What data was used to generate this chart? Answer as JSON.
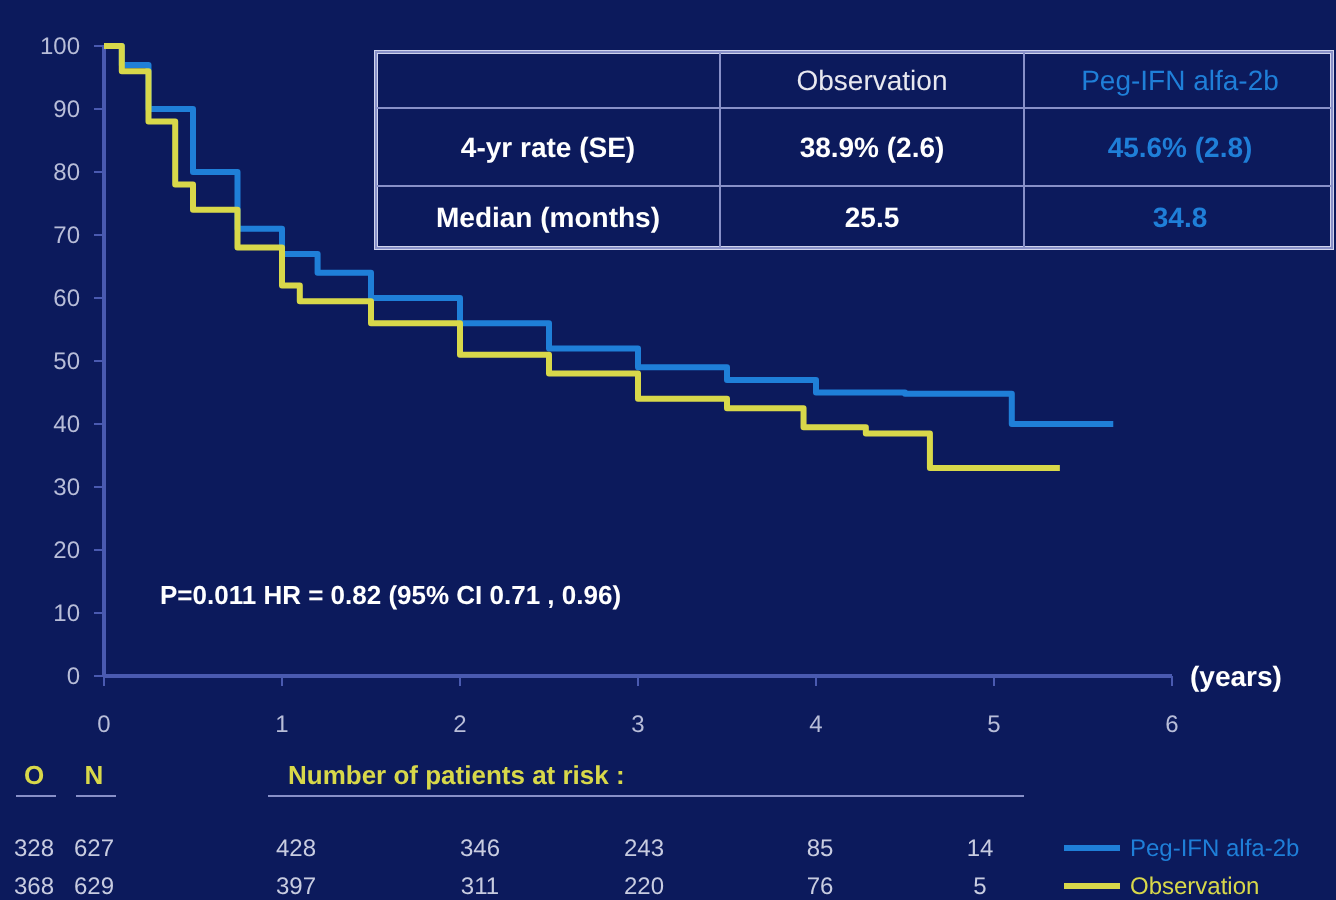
{
  "chart_data": {
    "type": "step",
    "xlabel": "(years)",
    "xlim": [
      0,
      6
    ],
    "xticks": [
      0,
      1,
      2,
      3,
      4,
      5,
      6
    ],
    "ylim": [
      0,
      100
    ],
    "yticks": [
      0,
      10,
      20,
      30,
      40,
      50,
      60,
      70,
      80,
      90,
      100
    ],
    "grid": false,
    "legend": "bottom right",
    "line_style": "solid",
    "marker": "none",
    "series": [
      {
        "name": "Peg-IFN alfa-2b",
        "color": "#1f7fd8",
        "x": [
          0,
          0.1,
          0.25,
          0.5,
          0.75,
          1.0,
          1.2,
          1.5,
          2.0,
          2.5,
          3.0,
          3.5,
          4.0,
          4.5,
          5.1,
          5.67
        ],
        "values": [
          100,
          97,
          90,
          80,
          71,
          67,
          64,
          60,
          56,
          52,
          49,
          47,
          45,
          44.8,
          40,
          40
        ]
      },
      {
        "name": "Observation",
        "color": "#d8d84a",
        "x": [
          0,
          0.1,
          0.25,
          0.4,
          0.5,
          0.75,
          1.0,
          1.1,
          1.5,
          2.0,
          2.5,
          3.0,
          3.5,
          3.93,
          4.28,
          4.64,
          5.37
        ],
        "values": [
          100,
          96,
          88,
          78,
          74,
          68,
          62,
          59.5,
          56,
          51,
          48,
          44,
          42.5,
          39.5,
          38.5,
          33,
          33
        ]
      }
    ],
    "annotations": [
      "P=0.011   HR = 0.82 (95% CI 0.71 , 0.96)",
      "Observation",
      "Peg-IFN alfa-2b",
      "4-yr rate   (SE)",
      "38.9%   (2.6)",
      "45.6%   (2.8)",
      "Median (months)",
      "25.5",
      "34.8",
      "O",
      "N",
      "Number of patients at risk :",
      "328",
      "627",
      "428",
      "346",
      "243",
      "85",
      "14",
      "368",
      "629",
      "397",
      "311",
      "220",
      "76",
      "5"
    ]
  }
}
